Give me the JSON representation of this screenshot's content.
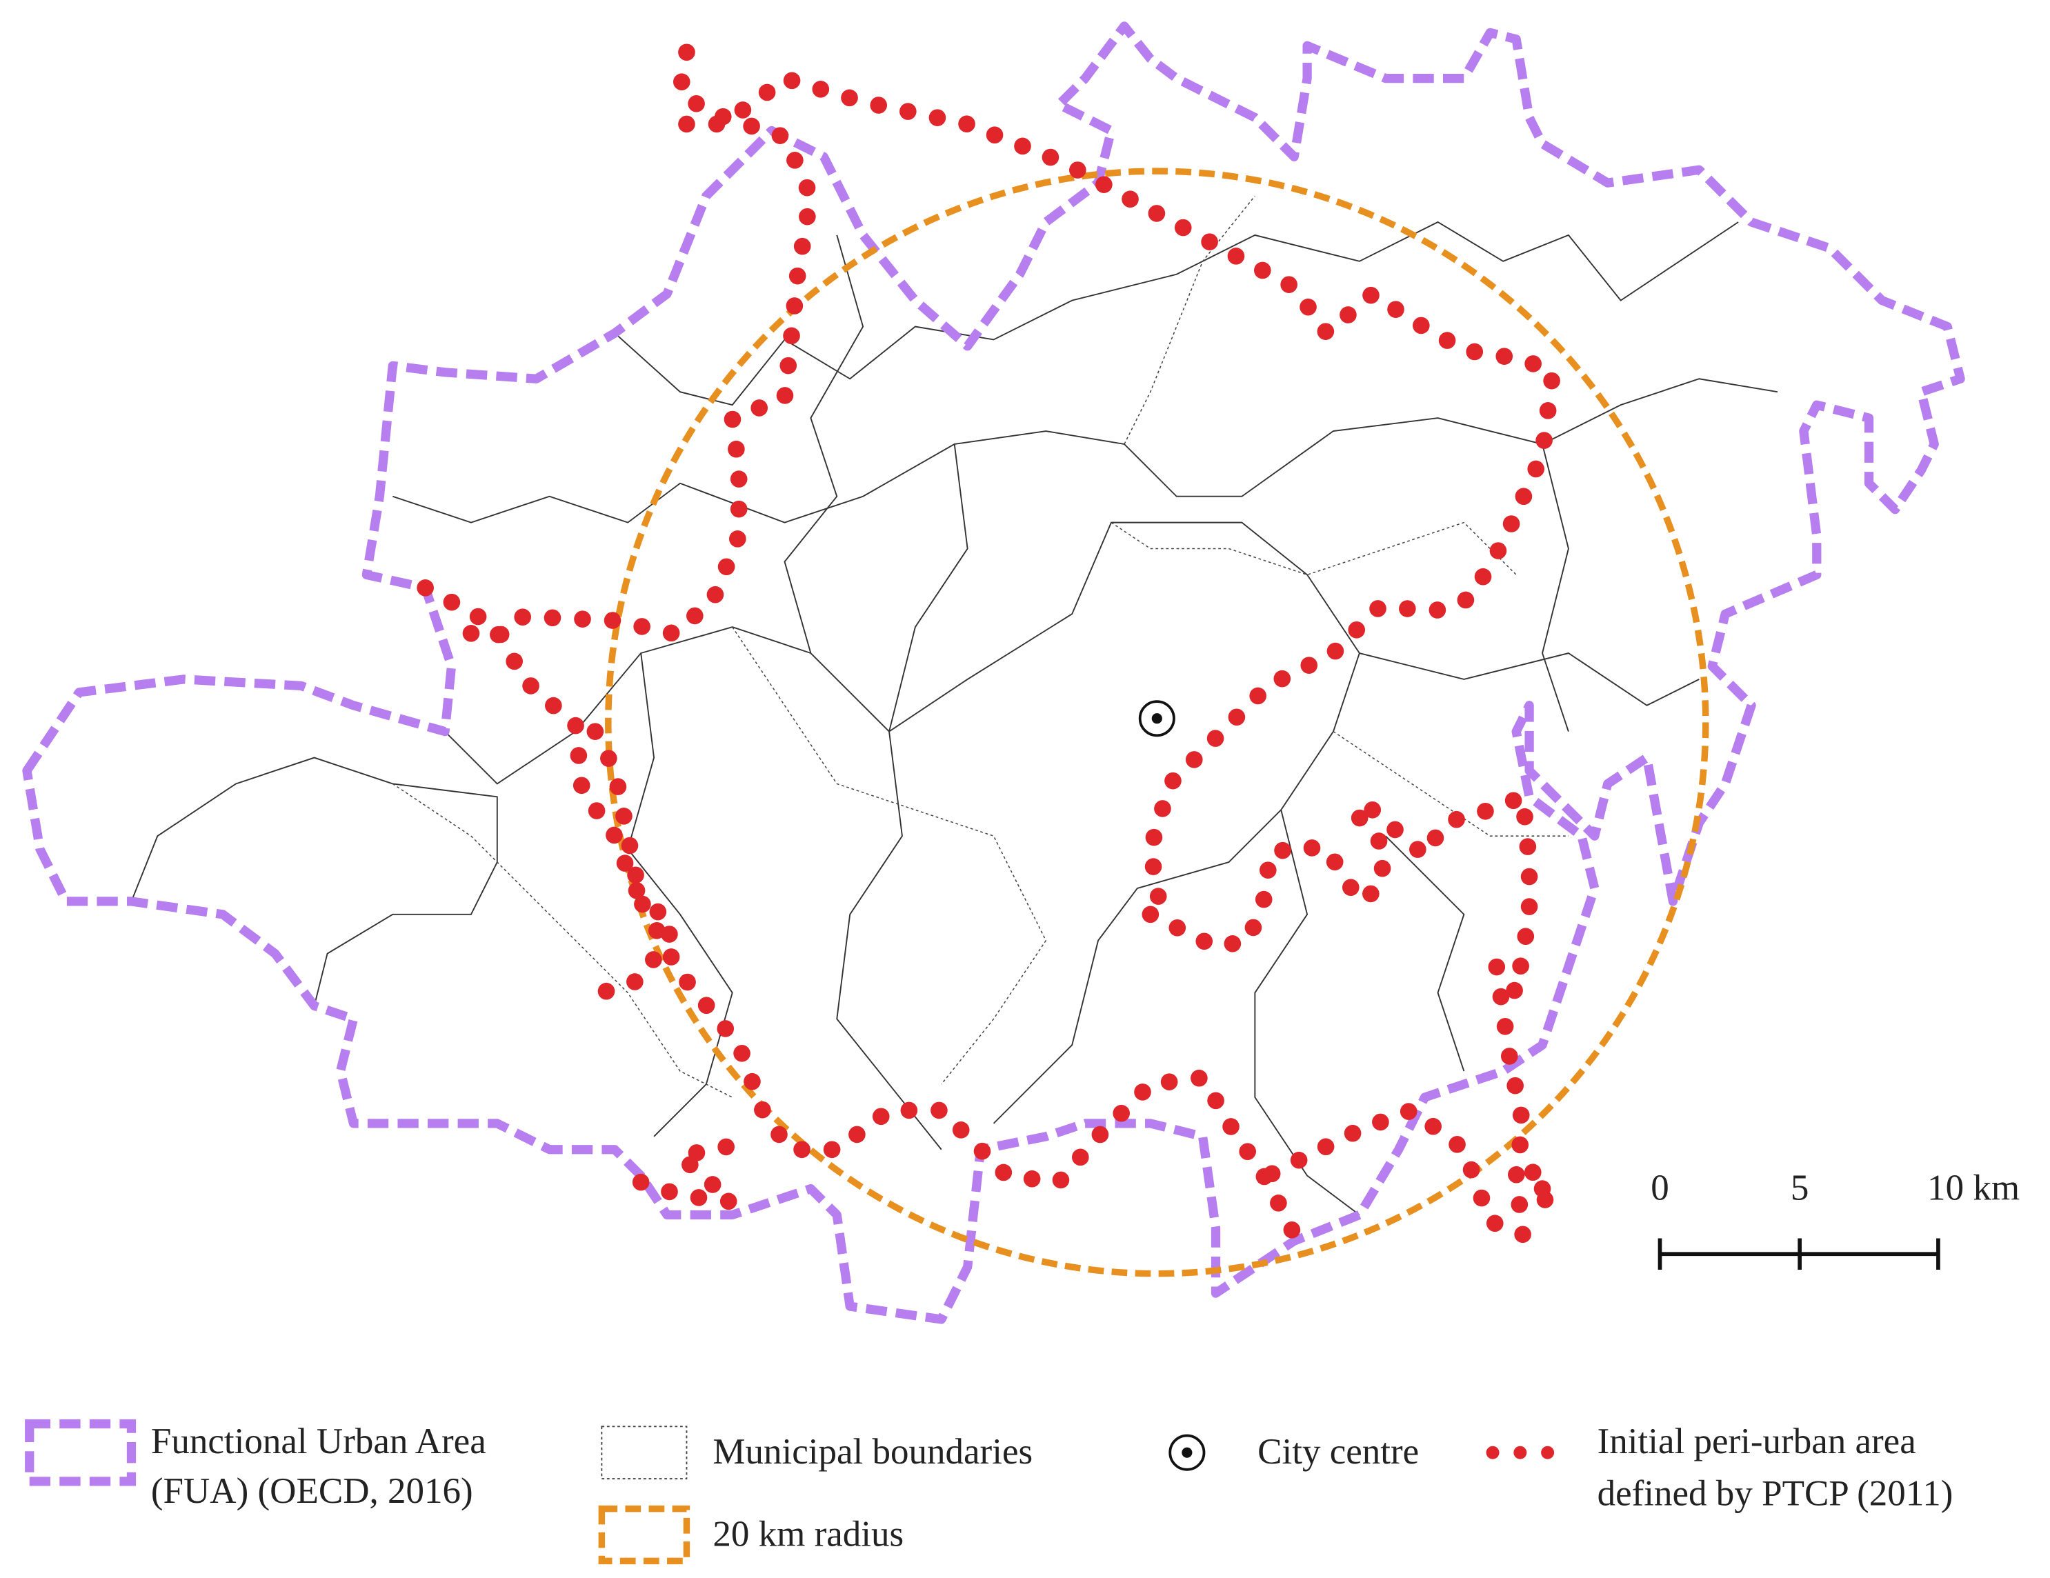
{
  "scale_bar": {
    "labels": [
      "0",
      "5",
      "10 km"
    ]
  },
  "legend": {
    "items": [
      {
        "lines": [
          "Functional Urban Area",
          "(FUA) (OECD, 2016)"
        ]
      },
      {
        "lines": [
          "Municipal boundaries"
        ]
      },
      {
        "lines": [
          "20 km radius"
        ]
      },
      {
        "lines": [
          "City centre"
        ]
      },
      {
        "lines": [
          "Initial peri-urban area",
          "defined by PTCP (2011)"
        ]
      }
    ]
  }
}
